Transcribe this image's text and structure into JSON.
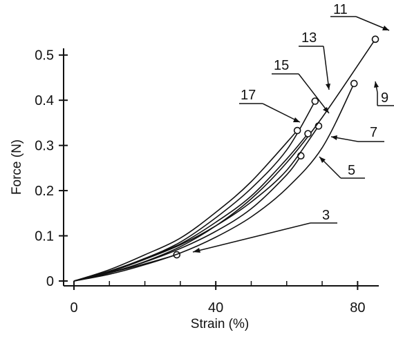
{
  "chart_data": {
    "type": "line",
    "title": "",
    "xlabel": "Strain (%)",
    "ylabel": "Force (N)",
    "xlim": [
      0,
      85
    ],
    "ylim": [
      0,
      0.55
    ],
    "xticks": [
      0,
      40,
      80
    ],
    "xtick_labels": [
      "0",
      "40",
      "80"
    ],
    "xminor": [
      10,
      20,
      30,
      50,
      60,
      70
    ],
    "yticks": [
      0,
      0.1,
      0.2,
      0.3,
      0.4,
      0.5
    ],
    "ytick_labels": [
      "0",
      "0.1",
      "0.2",
      "0.3",
      "0.4",
      "0.5"
    ],
    "grid": false,
    "legend": "none",
    "series": [
      {
        "name": "3",
        "x": [
          0,
          10,
          20,
          29
        ],
        "y": [
          0,
          0.018,
          0.038,
          0.058
        ],
        "end": [
          29,
          0.058
        ]
      },
      {
        "name": "5",
        "x": [
          0,
          10,
          20,
          30,
          40,
          50,
          60,
          64
        ],
        "y": [
          0,
          0.018,
          0.042,
          0.072,
          0.11,
          0.16,
          0.235,
          0.277
        ],
        "end": [
          64,
          0.277
        ]
      },
      {
        "name": "7",
        "x": [
          0,
          10,
          20,
          30,
          40,
          50,
          60,
          69
        ],
        "y": [
          0,
          0.02,
          0.048,
          0.08,
          0.122,
          0.175,
          0.245,
          0.343
        ],
        "end": [
          69,
          0.343
        ]
      },
      {
        "name": "9",
        "x": [
          0,
          10,
          20,
          30,
          40,
          50,
          60,
          70,
          79
        ],
        "y": [
          0,
          0.015,
          0.036,
          0.062,
          0.097,
          0.142,
          0.205,
          0.295,
          0.437
        ],
        "end": [
          79,
          0.437
        ]
      },
      {
        "name": "11",
        "x": [
          0,
          10,
          20,
          30,
          40,
          50,
          60,
          70,
          85
        ],
        "y": [
          0,
          0.018,
          0.043,
          0.076,
          0.122,
          0.182,
          0.262,
          0.362,
          0.535
        ],
        "end": [
          85,
          0.535
        ]
      },
      {
        "name": "13",
        "x": [
          0,
          10,
          20,
          30,
          40,
          50,
          60,
          68
        ],
        "y": [
          0,
          0.022,
          0.05,
          0.086,
          0.14,
          0.205,
          0.29,
          0.398
        ],
        "end": [
          68,
          0.398
        ]
      },
      {
        "name": "15",
        "x": [
          0,
          10,
          20,
          30,
          40,
          50,
          60,
          66
        ],
        "y": [
          0,
          0.02,
          0.05,
          0.082,
          0.13,
          0.188,
          0.27,
          0.326
        ],
        "end": [
          66,
          0.326
        ]
      },
      {
        "name": "17",
        "x": [
          0,
          10,
          20,
          30,
          40,
          50,
          63
        ],
        "y": [
          0,
          0.025,
          0.058,
          0.095,
          0.152,
          0.22,
          0.333
        ],
        "end": [
          63,
          0.333
        ]
      }
    ]
  }
}
